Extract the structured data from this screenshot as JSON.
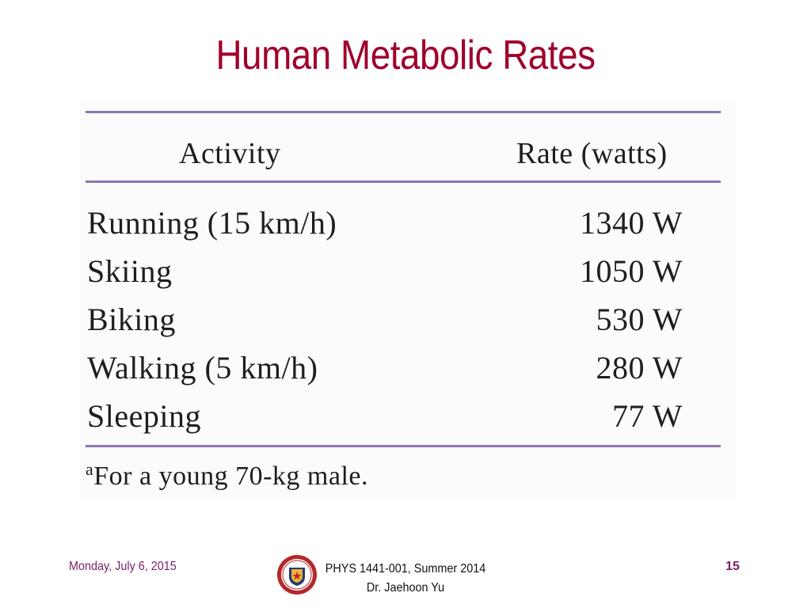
{
  "slide": {
    "title": "Human Metabolic Rates"
  },
  "table": {
    "headers": {
      "activity": "Activity",
      "rate": "Rate (watts)"
    },
    "rows": [
      {
        "activity": "Running (15 km/h)",
        "rate": "1340 W"
      },
      {
        "activity": "Skiing",
        "rate": "1050 W"
      },
      {
        "activity": "Biking",
        "rate": "530 W"
      },
      {
        "activity": "Walking (5 km/h)",
        "rate": "280 W"
      },
      {
        "activity": "Sleeping",
        "rate": "77 W"
      }
    ],
    "footnote_marker": "a",
    "footnote_text": "For a young 70-kg male.",
    "rule_color": "#8c78b2"
  },
  "footer": {
    "date": "Monday, July 6, 2015",
    "course_line1": "PHYS 1441-001, Summer 2014",
    "course_line2": "Dr. Jaehoon Yu",
    "page_number": "15",
    "logo": "university-seal-icon"
  },
  "colors": {
    "title": "#a0002a",
    "footer_accent": "#7a1f66"
  }
}
